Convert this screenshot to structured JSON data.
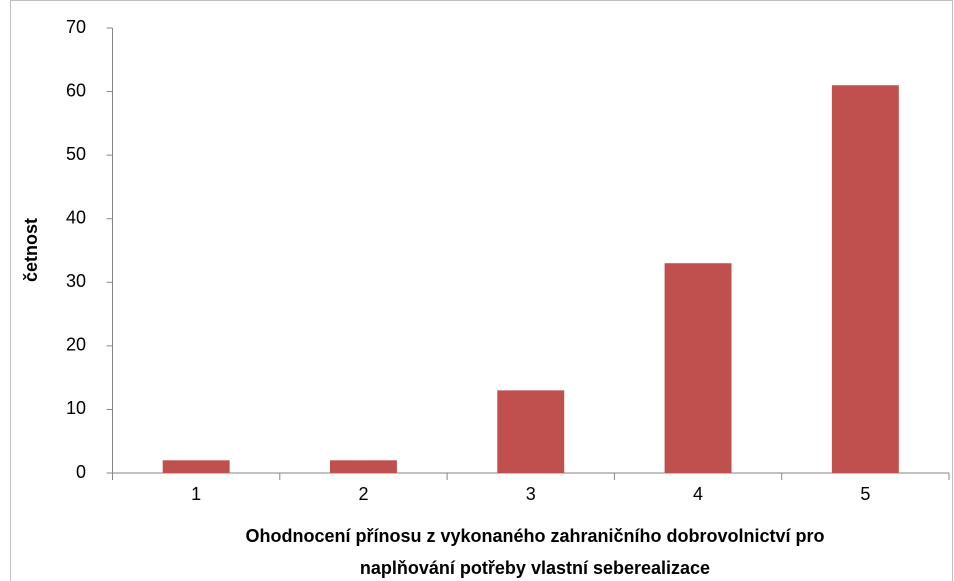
{
  "chart_data": {
    "type": "bar",
    "categories": [
      "1",
      "2",
      "3",
      "4",
      "5"
    ],
    "values": [
      2,
      2,
      13,
      33,
      61
    ],
    "color": "#c0504d",
    "ylim": [
      0,
      70
    ],
    "yticks": [
      0,
      10,
      20,
      30,
      40,
      50,
      60,
      70
    ],
    "ylabel": "četnost",
    "xlabel": [
      "Ohodnocení přínosu z vykonaného zahraničního dobrovolnictví pro",
      "naplňování potřeby vlastní seberealizace"
    ],
    "grid": false
  }
}
